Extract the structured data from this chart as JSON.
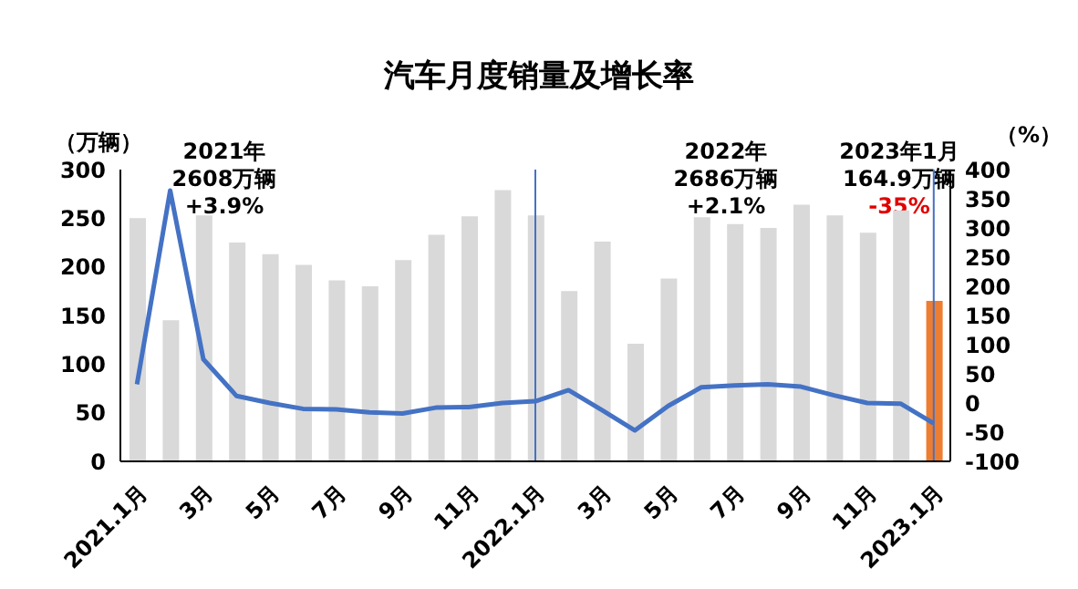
{
  "chart_data": {
    "type": "bar",
    "title": "汽车月度销量及增长率",
    "ylabel": "（万辆）",
    "y2label": "（%）",
    "categories": [
      "2021.1月",
      null,
      "3月",
      null,
      "5月",
      null,
      "7月",
      null,
      "9月",
      null,
      "11月",
      null,
      "2022.1月",
      null,
      "3月",
      null,
      "5月",
      null,
      "7月",
      null,
      "9月",
      null,
      "11月",
      null,
      "2023.1月"
    ],
    "series": [
      {
        "colors": [
          "#d9d9d9",
          "#d9d9d9",
          "#d9d9d9",
          "#d9d9d9",
          "#d9d9d9",
          "#d9d9d9",
          "#d9d9d9",
          "#d9d9d9",
          "#d9d9d9",
          "#d9d9d9",
          "#d9d9d9",
          "#d9d9d9",
          "#d9d9d9",
          "#d9d9d9",
          "#d9d9d9",
          "#d9d9d9",
          "#d9d9d9",
          "#d9d9d9",
          "#d9d9d9",
          "#d9d9d9",
          "#d9d9d9",
          "#d9d9d9",
          "#d9d9d9",
          "#d9d9d9",
          "#ed7d31"
        ],
        "values": [
          250,
          145,
          253,
          225,
          213,
          202,
          186,
          180,
          207,
          233,
          252,
          279,
          253,
          175,
          226,
          121,
          188,
          251,
          244,
          240,
          264,
          253,
          235,
          258,
          165
        ]
      },
      {
        "type": "line",
        "axis": "y2",
        "color": "#4472c4",
        "values": [
          32,
          364,
          75,
          12,
          0,
          -10,
          -11,
          -16,
          -18,
          -8,
          -7,
          0,
          3,
          22,
          -12,
          -47,
          -5,
          27,
          30,
          32,
          28,
          13,
          0,
          -1,
          -35
        ]
      }
    ],
    "ylim": [
      0,
      300
    ],
    "yticks": [
      0,
      50,
      100,
      150,
      200,
      250,
      300
    ],
    "y2lim": [
      -100,
      400
    ],
    "y2ticks": [
      -100,
      -50,
      0,
      50,
      100,
      150,
      200,
      250,
      300,
      350,
      400
    ],
    "ref_lines": [
      {
        "axis": "x",
        "value": "2022.1月",
        "color": "#4472c4"
      },
      {
        "axis": "x",
        "value": "2023.1月",
        "color": "#4472c4"
      }
    ],
    "annotations": [
      "2021年\n2608万辆\n+3.9%",
      "2022年\n2686万辆\n+2.1%",
      "2023年1月\n164.9万辆",
      "-35%"
    ],
    "grid": false,
    "legend": false,
    "marker": "none"
  }
}
